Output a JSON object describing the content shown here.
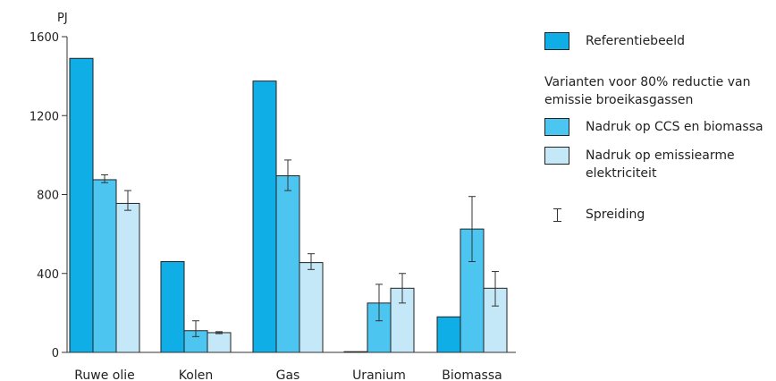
{
  "chart_data": {
    "type": "bar",
    "ylabel": "PJ",
    "ylim": [
      0,
      1600
    ],
    "yticks": [
      "0",
      "400",
      "800",
      "1200",
      "1600"
    ],
    "categories": [
      "Ruwe olie",
      "Kolen",
      "Gas",
      "Uranium",
      "Biomassa"
    ],
    "series": [
      {
        "name": "Referentiebeeld",
        "color": "#0faee6",
        "values": [
          1490,
          460,
          1375,
          0,
          180
        ]
      },
      {
        "name": "Nadruk op CCS en biomassa",
        "color": "#4cc6f0",
        "values": [
          875,
          110,
          895,
          250,
          625
        ],
        "err_low": [
          860,
          80,
          820,
          160,
          460
        ],
        "err_high": [
          900,
          160,
          975,
          345,
          790
        ]
      },
      {
        "name": "Nadruk op emissiearme elektriciteit",
        "color": "#c4e8f8",
        "values": [
          755,
          100,
          455,
          325,
          325
        ],
        "err_low": [
          720,
          95,
          420,
          250,
          235
        ],
        "err_high": [
          820,
          105,
          500,
          400,
          410
        ]
      }
    ]
  },
  "legend": {
    "reference_label": "Referentiebeeld",
    "variants_heading": "Varianten voor 80% reductie van emissie broeikasgassen",
    "ccs_label": "Nadruk op CCS en biomassa",
    "low_emission_label_line1": "Nadruk op emissiearme",
    "low_emission_label_line2": "elektriciteit",
    "spread_label": "Spreiding"
  }
}
